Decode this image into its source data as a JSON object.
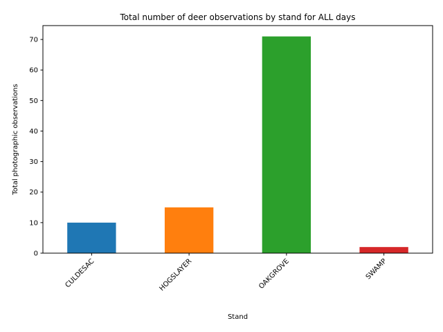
{
  "chart_data": {
    "type": "bar",
    "title": "Total number of deer observations by stand for ALL days",
    "xlabel": "Stand",
    "ylabel": "Total photographic observations",
    "categories": [
      "CULDESAC",
      "HOGSLAYER",
      "OAKGROVE",
      "SWAMP"
    ],
    "values": [
      10,
      15,
      71,
      2
    ],
    "colors": [
      "#1f77b4",
      "#ff7f0e",
      "#2ca02c",
      "#d62728"
    ],
    "ylim": [
      0,
      74.55
    ],
    "yticks": [
      0,
      10,
      20,
      30,
      40,
      50,
      60,
      70
    ],
    "x_tick_rotation": 45,
    "grid": false,
    "legend": "none"
  }
}
